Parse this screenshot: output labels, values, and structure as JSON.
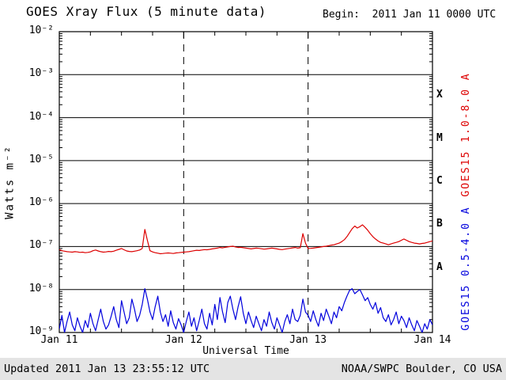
{
  "header": {
    "title": "GOES Xray Flux (5 minute data)",
    "begin_label": "Begin:  2011 Jan 11 0000 UTC"
  },
  "footer": {
    "updated": "Updated 2011 Jan 13 23:55:12 UTC",
    "credit": "NOAA/SWPC Boulder, CO USA"
  },
  "axes": {
    "y_title": "Watts m⁻²",
    "x_title": "Universal Time",
    "y_ticks": [
      {
        "label": "10⁻²",
        "exp": -2
      },
      {
        "label": "10⁻³",
        "exp": -3
      },
      {
        "label": "10⁻⁴",
        "exp": -4
      },
      {
        "label": "10⁻⁵",
        "exp": -5
      },
      {
        "label": "10⁻⁶",
        "exp": -6
      },
      {
        "label": "10⁻⁷",
        "exp": -7
      },
      {
        "label": "10⁻⁸",
        "exp": -8
      },
      {
        "label": "10⁻⁹",
        "exp": -9
      }
    ],
    "x_ticks": [
      {
        "label": "Jan 11",
        "hour": 0
      },
      {
        "label": "Jan 12",
        "hour": 24
      },
      {
        "label": "Jan 13",
        "hour": 48
      },
      {
        "label": "Jan 14",
        "hour": 72
      }
    ],
    "flare_classes": [
      {
        "label": "X",
        "exp_mid": -3.5
      },
      {
        "label": "M",
        "exp_mid": -4.5
      },
      {
        "label": "C",
        "exp_mid": -5.5
      },
      {
        "label": "B",
        "exp_mid": -6.5
      },
      {
        "label": "A",
        "exp_mid": -7.5
      }
    ]
  },
  "right_labels": {
    "long": {
      "text": "GOES15 1.0-8.0 A",
      "color": "#dd0000"
    },
    "short": {
      "text": "GOES15 0.5-4.0 A",
      "color": "#0000dd"
    }
  },
  "colors": {
    "red_series": "#dd0000",
    "blue_series": "#0000dd",
    "grid": "#000000",
    "footer_bg": "#e4e4e4"
  },
  "chart_data": {
    "type": "line",
    "title": "GOES Xray Flux (5 minute data)",
    "xlabel": "Universal Time",
    "ylabel": "Watts m⁻²",
    "y_scale": "log",
    "ylim": [
      1e-09,
      0.01
    ],
    "x_start_utc": "2011 Jan 11 0000 UTC",
    "x_end_utc": "2011 Jan 14 0000 UTC",
    "x_step_hours": 0.5,
    "grid": {
      "h_line_exponents": [
        -3,
        -4,
        -5,
        -6,
        -7,
        -8
      ],
      "v_dashed_hours": [
        24,
        48
      ]
    },
    "series": [
      {
        "name": "GOES15 1.0-8.0 A",
        "wavelength_band": "long",
        "color": "#dd0000",
        "unit": "W m^-2",
        "scale": 1e-08,
        "values": [
          8.5,
          8.0,
          7.8,
          7.6,
          7.5,
          7.4,
          7.6,
          7.5,
          7.3,
          7.4,
          7.2,
          7.3,
          7.5,
          8.0,
          8.3,
          7.9,
          7.6,
          7.4,
          7.5,
          7.7,
          7.6,
          7.8,
          8.2,
          8.6,
          9.0,
          8.4,
          7.9,
          7.7,
          7.6,
          7.8,
          8.0,
          8.3,
          9.0,
          25.0,
          14.0,
          8.0,
          7.5,
          7.2,
          7.0,
          6.8,
          6.9,
          7.0,
          7.1,
          7.0,
          6.9,
          7.1,
          7.2,
          7.3,
          7.4,
          7.5,
          7.6,
          7.8,
          8.0,
          8.2,
          8.1,
          8.3,
          8.5,
          8.4,
          8.6,
          8.8,
          9.0,
          9.2,
          9.5,
          9.3,
          9.6,
          9.8,
          10.0,
          10.2,
          9.8,
          9.5,
          9.6,
          9.4,
          9.2,
          9.0,
          8.8,
          9.0,
          9.2,
          9.1,
          8.9,
          8.7,
          8.8,
          9.0,
          9.2,
          9.0,
          8.8,
          8.6,
          8.5,
          8.7,
          8.9,
          9.1,
          9.3,
          9.5,
          9.2,
          9.4,
          20.0,
          12.0,
          9.0,
          9.1,
          9.2,
          9.4,
          9.6,
          9.8,
          10.0,
          10.2,
          10.5,
          10.8,
          11.0,
          11.5,
          12.0,
          13.0,
          14.5,
          17.0,
          21.0,
          26.0,
          30.0,
          27.0,
          29.0,
          32.0,
          28.0,
          24.0,
          20.0,
          17.0,
          15.0,
          13.5,
          12.5,
          12.0,
          11.5,
          11.0,
          11.5,
          12.0,
          12.5,
          13.0,
          14.0,
          15.0,
          14.0,
          13.0,
          12.5,
          12.0,
          11.8,
          11.5,
          11.8,
          12.0,
          12.5,
          13.0,
          13.5
        ]
      },
      {
        "name": "GOES15 0.5-4.0 A",
        "wavelength_band": "short",
        "color": "#0000dd",
        "unit": "W m^-2",
        "scale": 1e-09,
        "values": [
          1.2,
          2.5,
          1.0,
          1.8,
          3.0,
          1.5,
          1.1,
          2.2,
          1.4,
          1.0,
          1.9,
          1.3,
          2.8,
          1.6,
          1.1,
          2.0,
          3.5,
          1.8,
          1.2,
          1.5,
          2.4,
          4.0,
          2.0,
          1.3,
          5.5,
          3.0,
          1.6,
          2.2,
          6.0,
          3.5,
          1.8,
          2.5,
          4.5,
          10.5,
          6.0,
          3.0,
          2.0,
          4.0,
          7.0,
          3.0,
          1.8,
          2.6,
          1.4,
          3.2,
          1.7,
          1.2,
          2.1,
          1.5,
          1.0,
          1.8,
          3.0,
          1.4,
          2.2,
          1.1,
          1.9,
          3.5,
          1.6,
          1.2,
          2.8,
          1.5,
          4.5,
          2.0,
          6.5,
          3.0,
          1.7,
          5.0,
          7.0,
          3.5,
          2.0,
          4.0,
          6.8,
          2.8,
          1.6,
          3.0,
          1.9,
          1.3,
          2.4,
          1.6,
          1.1,
          2.0,
          1.4,
          3.0,
          1.7,
          1.2,
          2.2,
          1.5,
          1.0,
          1.8,
          2.6,
          1.6,
          3.5,
          2.0,
          1.8,
          2.5,
          6.0,
          3.0,
          2.5,
          1.8,
          3.2,
          2.0,
          1.4,
          2.8,
          1.9,
          3.5,
          2.4,
          1.6,
          3.0,
          2.2,
          4.0,
          3.2,
          5.0,
          7.0,
          9.5,
          10.5,
          8.0,
          9.0,
          10.0,
          7.5,
          5.5,
          6.5,
          4.5,
          3.5,
          5.0,
          2.8,
          3.8,
          2.2,
          1.8,
          2.6,
          1.5,
          2.0,
          3.0,
          1.6,
          2.4,
          1.9,
          1.3,
          2.2,
          1.5,
          1.1,
          1.9,
          1.4,
          1.0,
          1.6,
          1.2,
          2.0,
          1.5
        ]
      }
    ]
  }
}
